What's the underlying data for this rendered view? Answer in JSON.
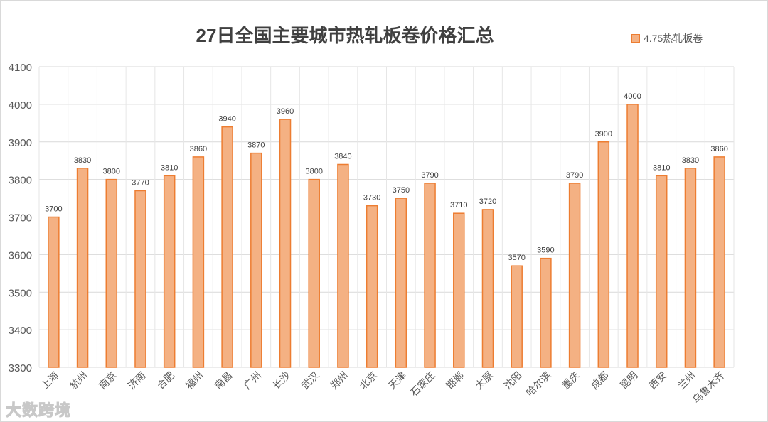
{
  "chart_data": {
    "type": "bar",
    "title": "27日全国主要城市热轧板卷价格汇总",
    "legend": [
      "4.75热轧板卷"
    ],
    "legend_position": "top-right",
    "xlabel": "",
    "ylabel": "",
    "ylim": [
      3300,
      4100
    ],
    "yticks": [
      3300,
      3400,
      3500,
      3600,
      3700,
      3800,
      3900,
      4000,
      4100
    ],
    "grid": true,
    "categories": [
      "上海",
      "杭州",
      "南京",
      "济南",
      "合肥",
      "福州",
      "南昌",
      "广州",
      "长沙",
      "武汉",
      "郑州",
      "北京",
      "天津",
      "石家庄",
      "邯郸",
      "太原",
      "沈阳",
      "哈尔滨",
      "重庆",
      "成都",
      "昆明",
      "西安",
      "兰州",
      "乌鲁木齐"
    ],
    "series": [
      {
        "name": "4.75热轧板卷",
        "values": [
          3700,
          3830,
          3800,
          3770,
          3810,
          3860,
          3940,
          3870,
          3960,
          3800,
          3840,
          3730,
          3750,
          3790,
          3710,
          3720,
          3570,
          3590,
          3790,
          3900,
          4000,
          3810,
          3830,
          3860
        ]
      }
    ],
    "colors": {
      "fill": "#f4b183",
      "stroke": "#ed7d31"
    }
  },
  "watermark": "大数跨境"
}
